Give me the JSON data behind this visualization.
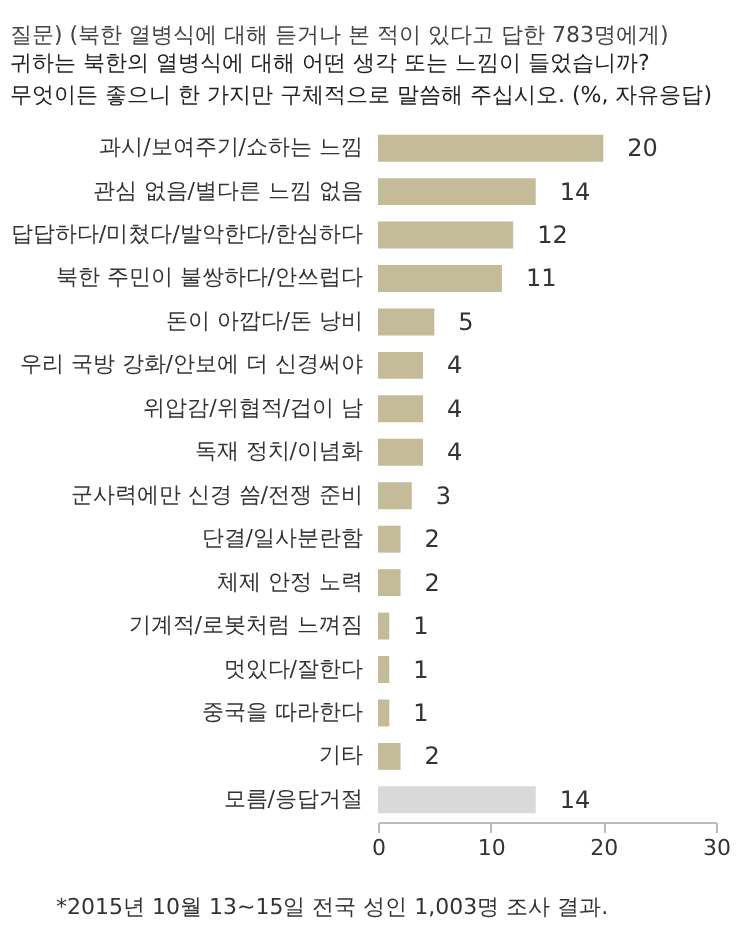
{
  "chart_data": {
    "type": "bar",
    "orientation": "horizontal",
    "title": "질문) (북한 열병식에 대해 듣거나 본 적이 있다고 답한 783명에게)",
    "subtitle": "귀하는 북한의 열병식에 대해 어떤 생각 또는 느낌이 들었습니까?\n무엇이든 좋으니 한 가지만 구체적으로 말씀해 주십시오. (%, 자유응답)",
    "categories": [
      "과시/보여주기/쇼하는 느낌",
      "관심 없음/별다른 느낌 없음",
      "답답하다/미쳤다/발악한다/한심하다",
      "북한 주민이 불쌍하다/안쓰럽다",
      "돈이 아깝다/돈 낭비",
      "우리 국방 강화/안보에 더 신경써야",
      "위압감/위협적/겁이 남",
      "독재 정치/이념화",
      "군사력에만 신경 씀/전쟁 준비",
      "단결/일사분란함",
      "체제 안정 노력",
      "기계적/로봇처럼 느껴짐",
      "멋있다/잘한다",
      "중국을 따라한다",
      "기타",
      "모름/응답거절"
    ],
    "values": [
      20,
      14,
      12,
      11,
      5,
      4,
      4,
      4,
      3,
      2,
      2,
      1,
      1,
      1,
      2,
      14
    ],
    "colors": [
      "#c4bb98",
      "#c4bb98",
      "#c4bb98",
      "#c4bb98",
      "#c4bb98",
      "#c4bb98",
      "#c4bb98",
      "#c4bb98",
      "#c4bb98",
      "#c4bb98",
      "#c4bb98",
      "#c4bb98",
      "#c4bb98",
      "#c4bb98",
      "#c4bb98",
      "#d9d9d9"
    ],
    "xlim": [
      0,
      30
    ],
    "xticks": [
      0,
      10,
      20,
      30
    ],
    "grid": false,
    "data_labels": true,
    "annotations": [
      "*2015년 10월 13~15일 전국 성인 1,003명 조사 결과."
    ]
  }
}
